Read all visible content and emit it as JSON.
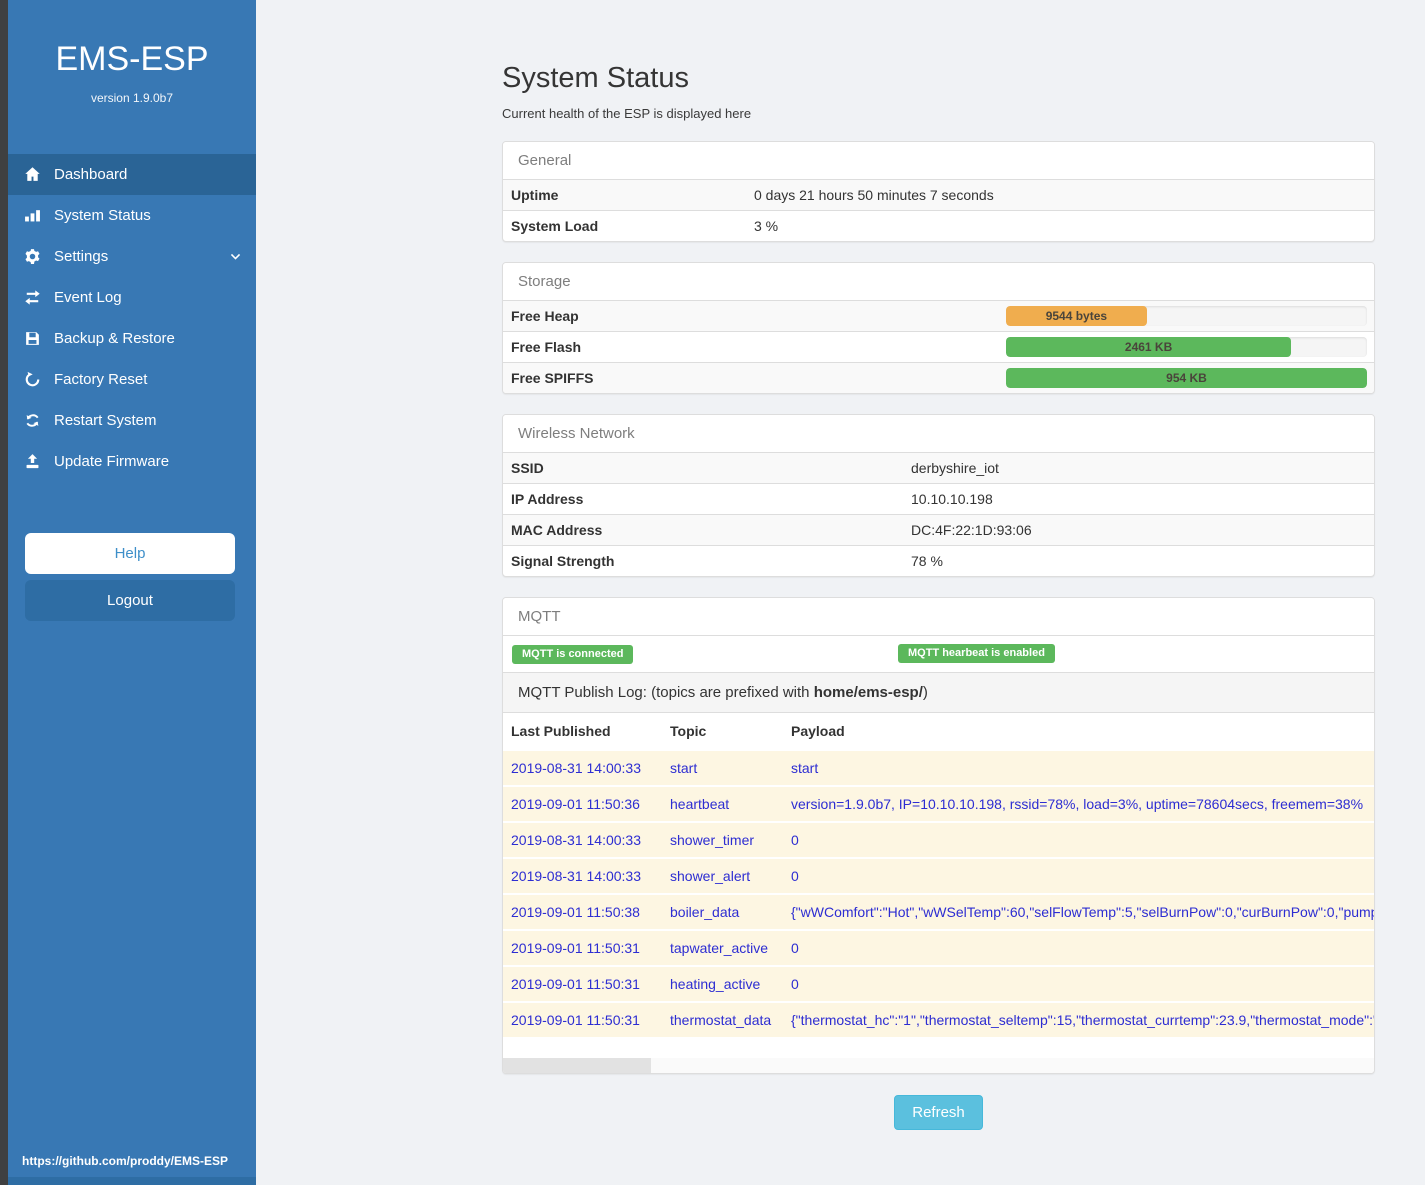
{
  "colors": {
    "sidebar_blue": "#3878b4",
    "sidebar_active_blue": "#2a6496",
    "accent_green": "#5cb85c",
    "accent_orange": "#f0ad4e",
    "refresh_blue": "#5bc0de",
    "link_blue": "#2d2dd2"
  },
  "sidebar": {
    "brand": "EMS-ESP",
    "version": "version 1.9.0b7",
    "items": [
      {
        "label": "Dashboard",
        "icon": "home-icon",
        "active": true
      },
      {
        "label": "System Status",
        "icon": "bar-chart-icon"
      },
      {
        "label": "Settings",
        "icon": "gear-icon",
        "chevron": true
      },
      {
        "label": "Event Log",
        "icon": "swap-arrows-icon"
      },
      {
        "label": "Backup & Restore",
        "icon": "floppy-icon"
      },
      {
        "label": "Factory Reset",
        "icon": "rotate-left-icon"
      },
      {
        "label": "Restart System",
        "icon": "refresh-icon"
      },
      {
        "label": "Update Firmware",
        "icon": "upload-icon"
      }
    ],
    "help_label": "Help",
    "logout_label": "Logout",
    "footer_link": "https://github.com/proddy/EMS-ESP"
  },
  "header": {
    "title": "System Status",
    "subtitle": "Current health of the ESP is displayed here"
  },
  "panels": {
    "general": {
      "title": "General",
      "rows": [
        {
          "label": "Uptime",
          "value": "0 days 21 hours 50 minutes 7 seconds"
        },
        {
          "label": "System Load",
          "value": "3 %"
        }
      ]
    },
    "storage": {
      "title": "Storage",
      "rows": [
        {
          "label": "Free Heap",
          "bar_label": "9544 bytes",
          "percent": 39,
          "color": "#f0ad4e"
        },
        {
          "label": "Free Flash",
          "bar_label": "2461 KB",
          "percent": 79,
          "color": "#5cb85c"
        },
        {
          "label": "Free SPIFFS",
          "bar_label": "954 KB",
          "percent": 100,
          "color": "#5cb85c"
        }
      ]
    },
    "wireless": {
      "title": "Wireless Network",
      "rows": [
        {
          "label": "SSID",
          "value": "derbyshire_iot"
        },
        {
          "label": "IP Address",
          "value": "10.10.10.198"
        },
        {
          "label": "MAC Address",
          "value": "DC:4F:22:1D:93:06"
        },
        {
          "label": "Signal Strength",
          "value": "78 %"
        }
      ]
    },
    "mqtt": {
      "title": "MQTT",
      "badges": [
        "MQTT is connected",
        "MQTT hearbeat is enabled"
      ],
      "log_caption": {
        "prefix": "MQTT Publish Log: (topics are prefixed with ",
        "bold": "home/ems-esp/",
        "suffix": ")"
      },
      "table": {
        "headers": [
          "Last Published",
          "Topic",
          "Payload"
        ],
        "rows": [
          [
            "2019-08-31 14:00:33",
            "start",
            "start"
          ],
          [
            "2019-09-01 11:50:36",
            "heartbeat",
            "version=1.9.0b7, IP=10.10.10.198, rssid=78%, load=3%, uptime=78604secs, freemem=38%"
          ],
          [
            "2019-08-31 14:00:33",
            "shower_timer",
            "0"
          ],
          [
            "2019-08-31 14:00:33",
            "shower_alert",
            "0"
          ],
          [
            "2019-09-01 11:50:38",
            "boiler_data",
            "{\"wWComfort\":\"Hot\",\"wWSelTemp\":60,\"selFlowTemp\":5,\"selBurnPow\":0,\"curBurnPow\":0,\"pump"
          ],
          [
            "2019-09-01 11:50:31",
            "tapwater_active",
            "0"
          ],
          [
            "2019-09-01 11:50:31",
            "heating_active",
            "0"
          ],
          [
            "2019-09-01 11:50:31",
            "thermostat_data",
            "{\"thermostat_hc\":\"1\",\"thermostat_seltemp\":15,\"thermostat_currtemp\":23.9,\"thermostat_mode\":\""
          ]
        ]
      }
    }
  },
  "refresh_button": "Refresh"
}
